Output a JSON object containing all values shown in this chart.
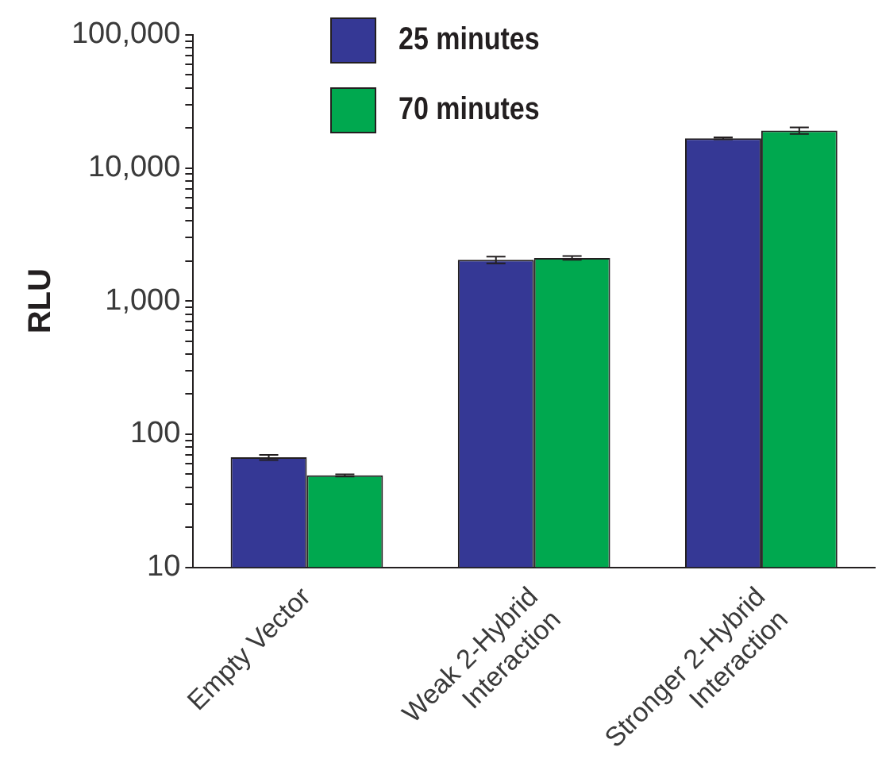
{
  "chart_data": {
    "type": "bar",
    "ylabel": "RLU",
    "categories": [
      "Empty Vector",
      "Weak 2-Hybrid\nInteraction",
      "Stronger 2-Hybrid\nInteraction"
    ],
    "series": [
      {
        "name": "25 minutes",
        "color": "#353895",
        "values": [
          67,
          2040,
          16700
        ],
        "errors": [
          3,
          120,
          300
        ]
      },
      {
        "name": "70 minutes",
        "color": "#00a84f",
        "values": [
          49,
          2110,
          19100
        ],
        "errors": [
          1,
          70,
          1100
        ]
      }
    ],
    "log": true,
    "ylim": [
      10,
      100000
    ],
    "yticks": [
      10,
      {
        "value": 20,
        "label": null
      },
      {
        "value": 30,
        "label": null
      },
      {
        "value": 40,
        "label": null
      },
      {
        "value": 50,
        "label": null
      },
      {
        "value": 60,
        "label": null
      },
      {
        "value": 70,
        "label": null
      },
      {
        "value": 80,
        "label": null
      },
      {
        "value": 90,
        "label": null
      },
      100,
      {
        "value": 200,
        "label": null
      },
      {
        "value": 300,
        "label": null
      },
      {
        "value": 400,
        "label": null
      },
      {
        "value": 500,
        "label": null
      },
      {
        "value": 600,
        "label": null
      },
      {
        "value": 700,
        "label": null
      },
      {
        "value": 800,
        "label": null
      },
      {
        "value": 900,
        "label": null
      },
      {
        "value": 1000,
        "label": "1,000"
      },
      {
        "value": 2000,
        "label": null
      },
      {
        "value": 3000,
        "label": null
      },
      {
        "value": 4000,
        "label": null
      },
      {
        "value": 5000,
        "label": null
      },
      {
        "value": 6000,
        "label": null
      },
      {
        "value": 7000,
        "label": null
      },
      {
        "value": 8000,
        "label": null
      },
      {
        "value": 9000,
        "label": null
      },
      {
        "value": 10000,
        "label": "10,000"
      },
      {
        "value": 20000,
        "label": null
      },
      {
        "value": 30000,
        "label": null
      },
      {
        "value": 40000,
        "label": null
      },
      {
        "value": 50000,
        "label": null
      },
      {
        "value": 60000,
        "label": null
      },
      {
        "value": 70000,
        "label": null
      },
      {
        "value": 80000,
        "label": null
      },
      {
        "value": 90000,
        "label": null
      },
      {
        "value": 100000,
        "label": "100,000"
      }
    ],
    "grid": false,
    "legend": "top"
  }
}
